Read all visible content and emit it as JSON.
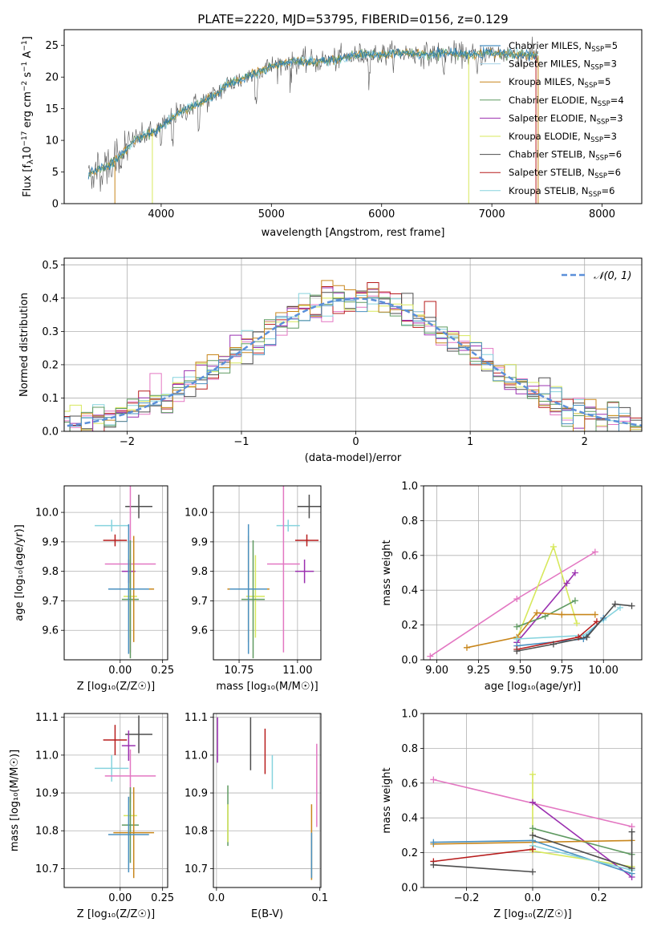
{
  "chart_data": [
    {
      "id": "spectrum",
      "type": "line",
      "title": "PLATE=2220, MJD=53795, FIBERID=0156, z=0.129",
      "xlabel": "wavelength [Angstrom, rest frame]",
      "ylabel_prefix": "Flux [f",
      "ylabel_mid": "10",
      "ylabel_exp1": "−17",
      "ylabel_units": " erg cm",
      "ylabel_exp2": "−2",
      "ylabel_s": " s",
      "ylabel_exp3": "−1",
      "ylabel_end": " A",
      "ylabel_exp4": "−1",
      "ylabel_close": "]",
      "xlim": [
        3120,
        8360
      ],
      "ylim": [
        0,
        27.5
      ],
      "xticks": [
        4000,
        5000,
        6000,
        7000,
        8000
      ],
      "yticks": [
        0,
        5,
        10,
        15,
        20,
        25
      ],
      "legend_position": "top-right",
      "series": [
        {
          "name": "Chabrier MILES, N",
          "sub": "SSP",
          "suffix": "=5",
          "color": "#1f77b4"
        },
        {
          "name": "Salpeter MILES, N",
          "sub": "SSP",
          "suffix": "=3",
          "color": "#a6d2e8"
        },
        {
          "name": "Kroupa MILES, N",
          "sub": "SSP",
          "suffix": "=5",
          "color": "#c8861b"
        },
        {
          "name": "Chabrier ELODIE, N",
          "sub": "SSP",
          "suffix": "=4",
          "color": "#5f9a61"
        },
        {
          "name": "Salpeter ELODIE, N",
          "sub": "SSP",
          "suffix": "=3",
          "color": "#9b30b0"
        },
        {
          "name": "Kroupa ELODIE, N",
          "sub": "SSP",
          "suffix": "=3",
          "color": "#d7e85c"
        },
        {
          "name": "Chabrier STELIB, N",
          "sub": "SSP",
          "suffix": "=6",
          "color": "#4d4d4d"
        },
        {
          "name": "Salpeter STELIB, N",
          "sub": "SSP",
          "suffix": "=6",
          "color": "#b71c1c"
        },
        {
          "name": "Kroupa STELIB, N",
          "sub": "SSP",
          "suffix": "=6",
          "color": "#86d3de"
        }
      ],
      "spectrum_shape": [
        [
          3340,
          4.6
        ],
        [
          3450,
          5.6
        ],
        [
          3550,
          6.2
        ],
        [
          3650,
          7.8
        ],
        [
          3750,
          10.0
        ],
        [
          3850,
          10.8
        ],
        [
          3950,
          11.4
        ],
        [
          4050,
          12.8
        ],
        [
          4150,
          14.2
        ],
        [
          4300,
          15.6
        ],
        [
          4450,
          16.7
        ],
        [
          4600,
          18.8
        ],
        [
          4750,
          19.8
        ],
        [
          4900,
          21.0
        ],
        [
          5050,
          22.0
        ],
        [
          5200,
          22.5
        ],
        [
          5400,
          22.4
        ],
        [
          5600,
          22.8
        ],
        [
          5800,
          23.5
        ],
        [
          6000,
          23.6
        ],
        [
          6200,
          23.8
        ],
        [
          6400,
          23.6
        ],
        [
          6600,
          23.8
        ],
        [
          6800,
          23.5
        ],
        [
          7000,
          23.8
        ],
        [
          7200,
          23.6
        ],
        [
          7400,
          23.4
        ]
      ]
    },
    {
      "id": "residuals",
      "type": "histogram",
      "xlabel": "(data-model)/error",
      "ylabel": "Normed distribution",
      "xlim": [
        -2.55,
        2.5
      ],
      "ylim": [
        0,
        0.52
      ],
      "xticks": [
        -2,
        -1,
        0,
        1,
        2
      ],
      "xtick_labels": [
        "−2",
        "−1",
        "0",
        "1",
        "2"
      ],
      "yticks": [
        0.0,
        0.1,
        0.2,
        0.3,
        0.4,
        0.5
      ],
      "ytick_labels": [
        "0.0",
        "0.1",
        "0.2",
        "0.3",
        "0.4",
        "0.5"
      ],
      "grid": true,
      "legend_position": "top-right",
      "gaussian_label": "𝒩(0, 1)",
      "gaussian_color": "#5b8fd9",
      "bin_width": 0.1
    },
    {
      "id": "age_vs_Z",
      "type": "errorbar",
      "xlabel": "Z [log₁₀(Z/Z☉)]",
      "ylabel": "age  [log₁₀(age/yr)]",
      "xlim": [
        -0.33,
        0.28
      ],
      "ylim": [
        9.5,
        10.09
      ],
      "xticks": [
        0.0,
        0.25
      ],
      "xtick_labels": [
        "0.00",
        "0.25"
      ],
      "yticks": [
        9.6,
        9.7,
        9.8,
        9.9,
        10.0
      ],
      "ytick_labels": [
        "9.6",
        "9.7",
        "9.8",
        "9.9",
        "10.0"
      ],
      "grid": true,
      "points": [
        {
          "color": "#4d4d4d",
          "x": 0.11,
          "xerr": 0.08,
          "y": 10.02,
          "yerr": 0.04
        },
        {
          "color": "#b71c1c",
          "x": -0.03,
          "xerr": 0.07,
          "y": 9.905,
          "yerr": 0.02
        },
        {
          "color": "#86d3de",
          "x": -0.05,
          "xerr": 0.1,
          "y": 9.955,
          "yerr": 0.02
        },
        {
          "color": "#9b30b0",
          "x": 0.05,
          "xerr": 0.04,
          "y": 9.8,
          "yerr": 0.04
        },
        {
          "color": "#e377c2",
          "x": 0.06,
          "xerr": 0.15,
          "y": 9.825,
          "yerr": 0.3
        },
        {
          "color": "#d7e85c",
          "x": 0.06,
          "xerr": 0.04,
          "y": 9.715,
          "yerr": 0.14
        },
        {
          "color": "#5f9a61",
          "x": 0.06,
          "xerr": 0.05,
          "y": 9.705,
          "yerr": 0.2
        },
        {
          "color": "#c8861b",
          "x": 0.08,
          "xerr": 0.12,
          "y": 9.74,
          "yerr": 0.18
        },
        {
          "color": "#4a90c0",
          "x": 0.05,
          "xerr": 0.12,
          "y": 9.74,
          "yerr": 0.22
        }
      ]
    },
    {
      "id": "age_vs_mass",
      "type": "errorbar",
      "xlabel": "mass [log₁₀(M/M☉)]",
      "xlim": [
        10.64,
        11.1
      ],
      "ylim": [
        9.5,
        10.09
      ],
      "xticks": [
        10.75,
        11.0
      ],
      "xtick_labels": [
        "10.75",
        "11.00"
      ],
      "yticks": [
        9.6,
        9.7,
        9.8,
        9.9,
        10.0
      ],
      "ytick_labels": [
        "9.6",
        "9.7",
        "9.8",
        "9.9",
        "10.0"
      ],
      "grid": true,
      "points": [
        {
          "color": "#4d4d4d",
          "x": 11.05,
          "xerr": 0.05,
          "y": 10.02,
          "yerr": 0.04
        },
        {
          "color": "#b71c1c",
          "x": 11.04,
          "xerr": 0.05,
          "y": 9.905,
          "yerr": 0.02
        },
        {
          "color": "#86d3de",
          "x": 10.96,
          "xerr": 0.05,
          "y": 9.955,
          "yerr": 0.02
        },
        {
          "color": "#9b30b0",
          "x": 11.03,
          "xerr": 0.04,
          "y": 9.8,
          "yerr": 0.04
        },
        {
          "color": "#e377c2",
          "x": 10.94,
          "xerr": 0.07,
          "y": 9.825,
          "yerr": 0.3
        },
        {
          "color": "#d7e85c",
          "x": 10.82,
          "xerr": 0.04,
          "y": 9.715,
          "yerr": 0.14
        },
        {
          "color": "#5f9a61",
          "x": 10.81,
          "xerr": 0.05,
          "y": 9.705,
          "yerr": 0.2
        },
        {
          "color": "#c8861b",
          "x": 10.79,
          "xerr": 0.09,
          "y": 9.74,
          "yerr": 0.18
        },
        {
          "color": "#4a90c0",
          "x": 10.79,
          "xerr": 0.08,
          "y": 9.74,
          "yerr": 0.22
        }
      ]
    },
    {
      "id": "massweight_vs_age",
      "type": "line",
      "xlabel": "age  [log₁₀(age/yr)]",
      "ylabel": "mass weight",
      "xlim": [
        8.92,
        10.23
      ],
      "ylim": [
        0,
        1.0
      ],
      "xticks": [
        9.0,
        9.25,
        9.5,
        9.75,
        10.0
      ],
      "xtick_labels": [
        "9.00",
        "9.25",
        "9.50",
        "9.75",
        "10.00"
      ],
      "yticks": [
        0.0,
        0.2,
        0.4,
        0.6,
        0.8,
        1.0
      ],
      "ytick_labels": [
        "0.0",
        "0.2",
        "0.4",
        "0.6",
        "0.8",
        "1.0"
      ],
      "grid": true,
      "series": [
        {
          "color": "#e377c2",
          "x": [
            8.96,
            9.48,
            9.95
          ],
          "y": [
            0.02,
            0.35,
            0.62
          ]
        },
        {
          "color": "#d7e85c",
          "x": [
            9.48,
            9.7,
            9.84
          ],
          "y": [
            0.12,
            0.65,
            0.21
          ]
        },
        {
          "color": "#9b30b0",
          "x": [
            9.48,
            9.78,
            9.83
          ],
          "y": [
            0.1,
            0.44,
            0.5
          ]
        },
        {
          "color": "#5f9a61",
          "x": [
            9.48,
            9.65,
            9.83
          ],
          "y": [
            0.19,
            0.25,
            0.34
          ]
        },
        {
          "color": "#c8861b",
          "x": [
            9.18,
            9.48,
            9.6,
            9.75,
            9.95
          ],
          "y": [
            0.07,
            0.13,
            0.27,
            0.26,
            0.26
          ]
        },
        {
          "color": "#86d3de",
          "x": [
            9.48,
            9.88,
            10.0,
            10.1
          ],
          "y": [
            0.12,
            0.14,
            0.23,
            0.3
          ]
        },
        {
          "color": "#4a90c0",
          "x": [
            9.48,
            9.88,
            10.0
          ],
          "y": [
            0.08,
            0.12,
            0.24
          ]
        },
        {
          "color": "#b71c1c",
          "x": [
            9.48,
            9.85,
            9.96
          ],
          "y": [
            0.06,
            0.13,
            0.22
          ]
        },
        {
          "color": "#4d4d4d",
          "x": [
            9.48,
            9.7,
            9.9,
            10.07,
            10.17
          ],
          "y": [
            0.05,
            0.09,
            0.13,
            0.32,
            0.31
          ]
        }
      ]
    },
    {
      "id": "mass_vs_Z",
      "type": "errorbar",
      "xlabel": "Z [log₁₀(Z/Z☉)]",
      "ylabel": "mass [log₁₀(M/M☉)]",
      "xlim": [
        -0.33,
        0.28
      ],
      "ylim": [
        10.65,
        11.11
      ],
      "xticks": [
        0.0,
        0.25
      ],
      "xtick_labels": [
        "0.00",
        "0.25"
      ],
      "yticks": [
        10.7,
        10.8,
        10.9,
        11.0,
        11.1
      ],
      "ytick_labels": [
        "10.7",
        "10.8",
        "10.9",
        "11.0",
        "11.1"
      ],
      "grid": true,
      "points": [
        {
          "color": "#4d4d4d",
          "x": 0.11,
          "xerr": 0.08,
          "y": 11.055,
          "yerr": 0.05
        },
        {
          "color": "#b71c1c",
          "x": -0.03,
          "xerr": 0.07,
          "y": 11.04,
          "yerr": 0.04
        },
        {
          "color": "#9b30b0",
          "x": 0.05,
          "xerr": 0.04,
          "y": 11.025,
          "yerr": 0.04
        },
        {
          "color": "#86d3de",
          "x": -0.05,
          "xerr": 0.1,
          "y": 10.965,
          "yerr": 0.035
        },
        {
          "color": "#e377c2",
          "x": 0.06,
          "xerr": 0.15,
          "y": 10.945,
          "yerr": 0.07
        },
        {
          "color": "#d7e85c",
          "x": 0.06,
          "xerr": 0.04,
          "y": 10.84,
          "yerr": 0.05
        },
        {
          "color": "#5f9a61",
          "x": 0.06,
          "xerr": 0.05,
          "y": 10.815,
          "yerr": 0.1
        },
        {
          "color": "#c8861b",
          "x": 0.08,
          "xerr": 0.12,
          "y": 10.795,
          "yerr": 0.12
        },
        {
          "color": "#4a90c0",
          "x": 0.05,
          "xerr": 0.12,
          "y": 10.79,
          "yerr": 0.1
        }
      ]
    },
    {
      "id": "mass_vs_ebv",
      "type": "errorbar",
      "xlabel": "E(B-V)",
      "xlim": [
        -0.003,
        0.101
      ],
      "ylim": [
        10.65,
        11.11
      ],
      "xticks": [
        0.0,
        0.1
      ],
      "xtick_labels": [
        "0.0",
        "0.1"
      ],
      "yticks": [
        10.7,
        10.8,
        10.9,
        11.0,
        11.1
      ],
      "ytick_labels": [
        "10.7",
        "10.8",
        "10.9",
        "11.0",
        "11.1"
      ],
      "grid": true,
      "points": [
        {
          "color": "#9b30b0",
          "x": 0.001,
          "xerr": 0.0,
          "y": 11.04,
          "yerr": 0.06
        },
        {
          "color": "#4d4d4d",
          "x": 0.033,
          "xerr": 0.0,
          "y": 11.03,
          "yerr": 0.07
        },
        {
          "color": "#b71c1c",
          "x": 0.047,
          "xerr": 0.0,
          "y": 11.01,
          "yerr": 0.06
        },
        {
          "color": "#86d3de",
          "x": 0.054,
          "xerr": 0.0,
          "y": 10.955,
          "yerr": 0.045
        },
        {
          "color": "#5f9a61",
          "x": 0.011,
          "xerr": 0.0,
          "y": 10.84,
          "yerr": 0.08
        },
        {
          "color": "#d7e85c",
          "x": 0.011,
          "xerr": 0.0,
          "y": 10.82,
          "yerr": 0.05
        },
        {
          "color": "#e377c2",
          "x": 0.097,
          "xerr": 0.0,
          "y": 10.92,
          "yerr": 0.11
        },
        {
          "color": "#c8861b",
          "x": 0.092,
          "xerr": 0.0,
          "y": 10.77,
          "yerr": 0.1
        },
        {
          "color": "#4a90c0",
          "x": 0.092,
          "xerr": 0.0,
          "y": 10.735,
          "yerr": 0.06
        }
      ]
    },
    {
      "id": "massweight_vs_Z",
      "type": "line",
      "xlabel": "Z [log₁₀(Z/Z☉)]",
      "ylabel": "mass weight",
      "xlim": [
        -0.33,
        0.33
      ],
      "ylim": [
        0,
        1.0
      ],
      "xticks": [
        -0.2,
        0.0,
        0.2
      ],
      "xtick_labels": [
        "−0.2",
        "0.0",
        "0.2"
      ],
      "yticks": [
        0.0,
        0.2,
        0.4,
        0.6,
        0.8,
        1.0
      ],
      "ytick_labels": [
        "0.0",
        "0.2",
        "0.4",
        "0.6",
        "0.8",
        "1.0"
      ],
      "grid": true,
      "series": [
        {
          "color": "#e377c2",
          "x": [
            -0.3,
            0.3
          ],
          "y": [
            0.62,
            0.35
          ]
        },
        {
          "color": "#d7e85c",
          "x": [
            0.0,
            0.0,
            0.3
          ],
          "y": [
            0.65,
            0.21,
            0.12
          ]
        },
        {
          "color": "#9b30b0",
          "x": [
            0.0,
            0.3
          ],
          "y": [
            0.49,
            0.06
          ]
        },
        {
          "color": "#5f9a61",
          "x": [
            0.0,
            0.3
          ],
          "y": [
            0.34,
            0.19
          ]
        },
        {
          "color": "#c8861b",
          "x": [
            -0.3,
            0.3
          ],
          "y": [
            0.25,
            0.27
          ]
        },
        {
          "color": "#4a90c0",
          "x": [
            -0.3,
            0.0,
            0.3
          ],
          "y": [
            0.26,
            0.27,
            0.08
          ]
        },
        {
          "color": "#86d3de",
          "x": [
            0.0,
            0.3
          ],
          "y": [
            0.24,
            0.1
          ]
        },
        {
          "color": "#b71c1c",
          "x": [
            -0.3,
            0.0
          ],
          "y": [
            0.15,
            0.22
          ]
        },
        {
          "color": "#4d4d4d",
          "x": [
            -0.3,
            0.0
          ],
          "y": [
            0.13,
            0.09
          ]
        },
        {
          "color": "#4d4d4d",
          "x": [
            0.0,
            0.3,
            0.3
          ],
          "y": [
            0.3,
            0.11,
            0.32
          ]
        }
      ]
    }
  ]
}
